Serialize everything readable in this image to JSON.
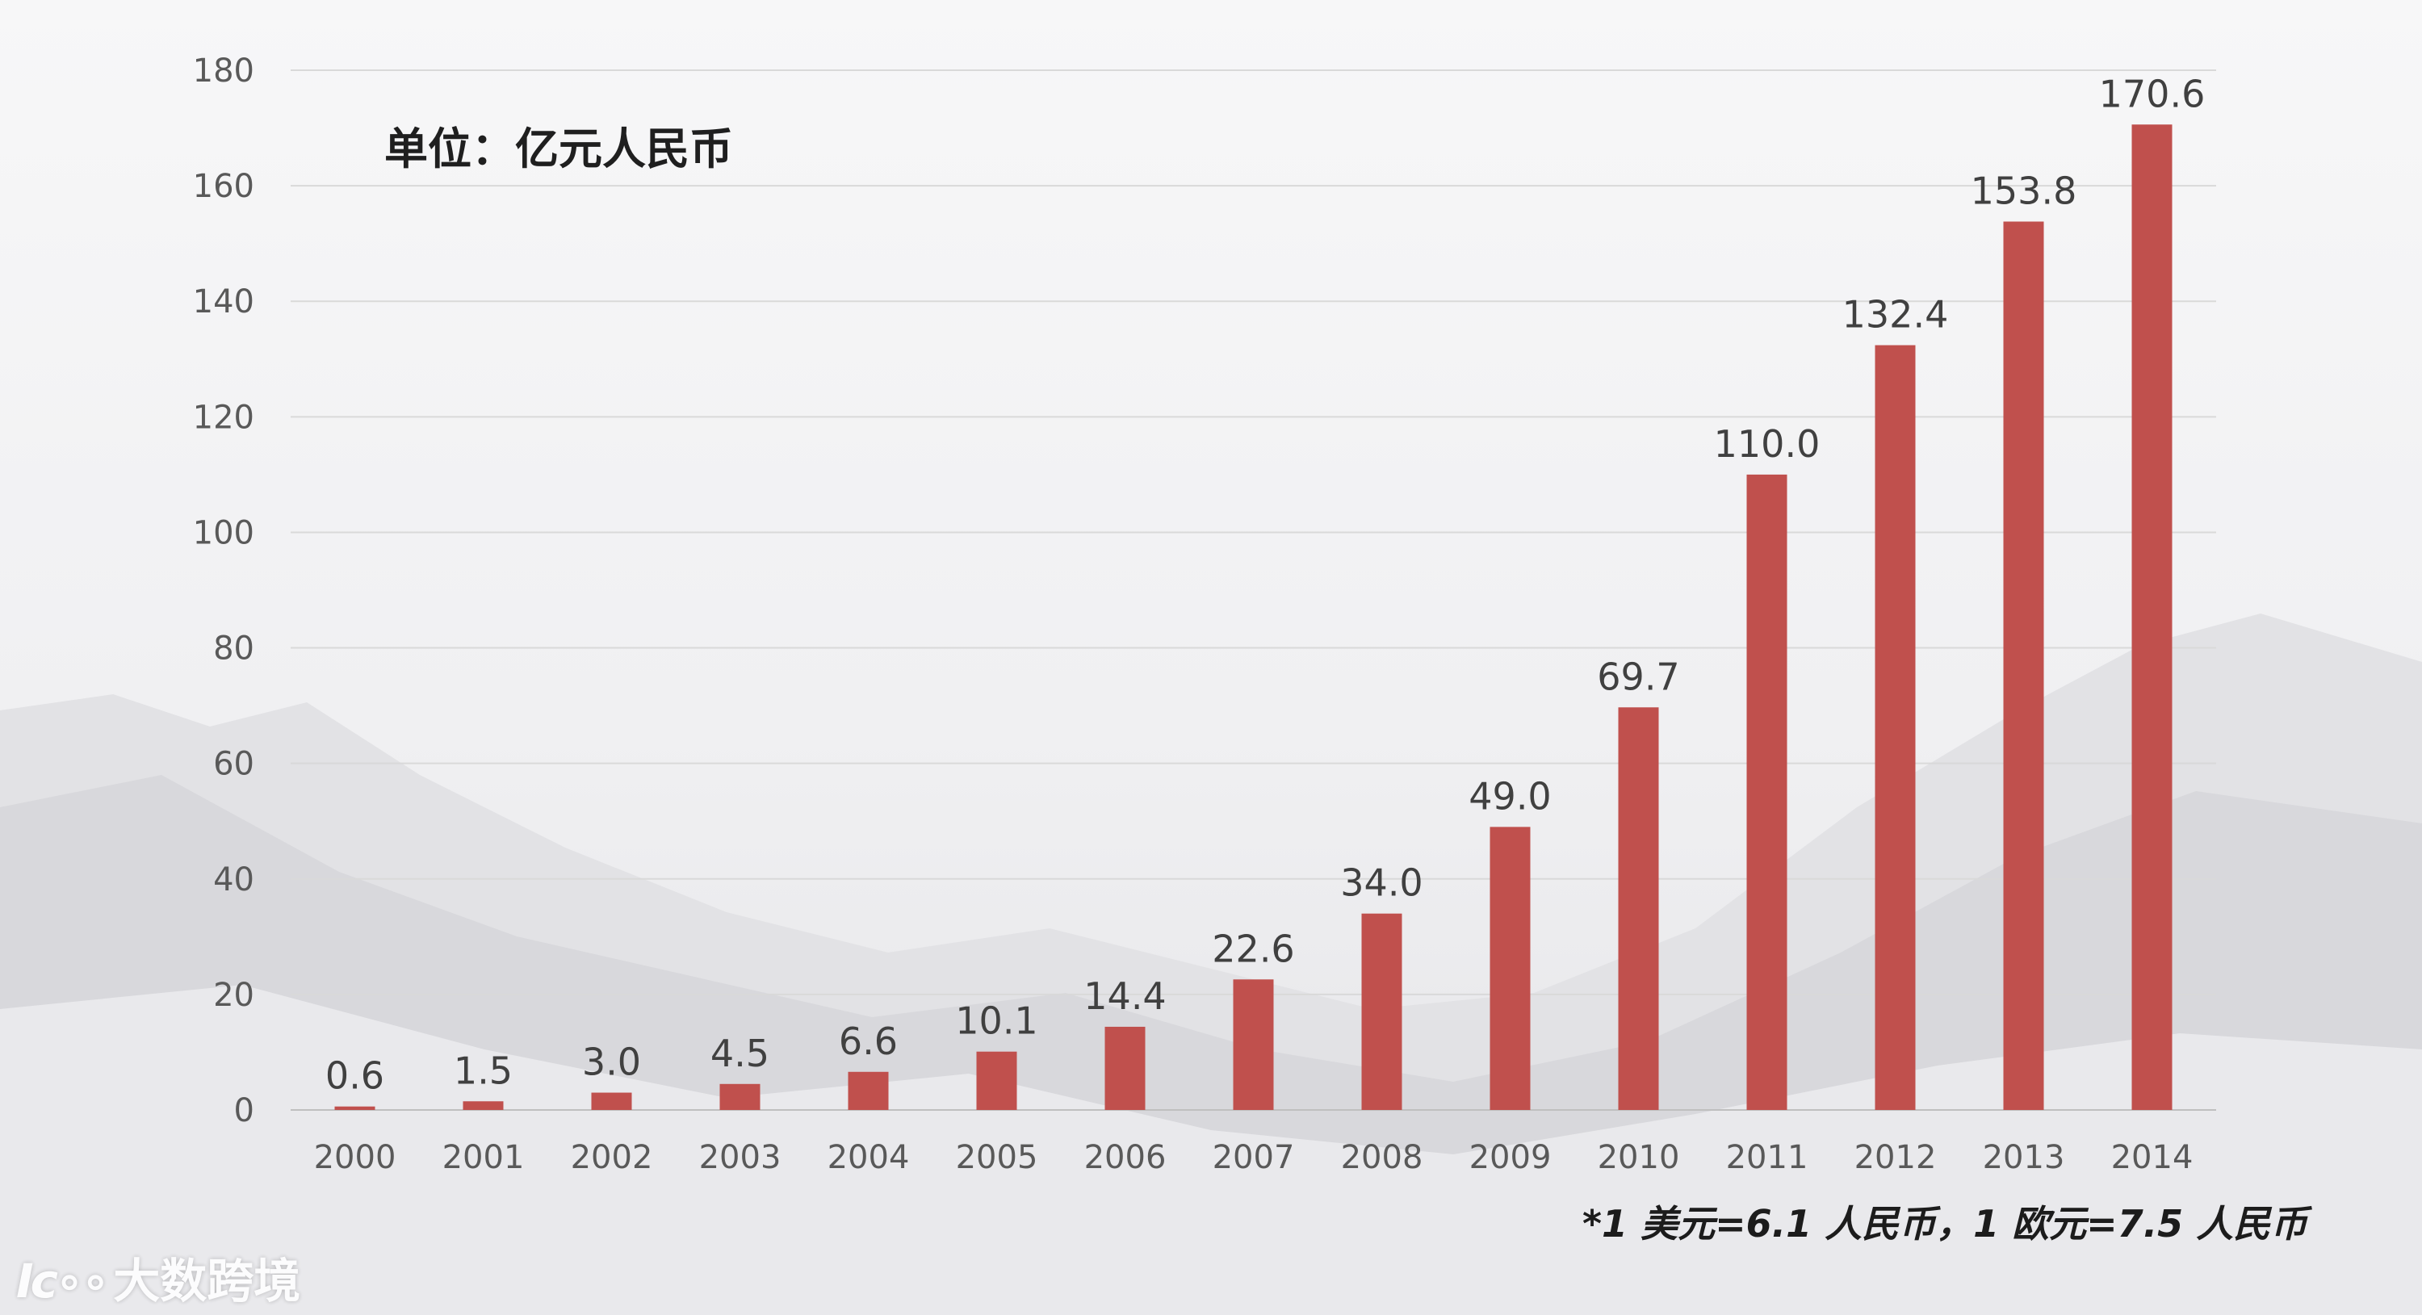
{
  "unit_label": "单位：亿元人民币",
  "note": "*1 美元=6.1 人民币，1 欧元=7.5 人民币",
  "watermark": {
    "mark": "Ic∘∘",
    "text": "大数跨境"
  },
  "colors": {
    "bar": "#c0504d",
    "grid": "#d9d9d9",
    "axis_text": "#595959",
    "label_text": "#404040"
  },
  "chart_data": {
    "type": "bar",
    "categories": [
      "2000",
      "2001",
      "2002",
      "2003",
      "2004",
      "2005",
      "2006",
      "2007",
      "2008",
      "2009",
      "2010",
      "2011",
      "2012",
      "2013",
      "2014"
    ],
    "values": [
      0.6,
      1.5,
      3.0,
      4.5,
      6.6,
      10.1,
      14.4,
      22.6,
      34.0,
      49.0,
      69.7,
      110.0,
      132.4,
      153.8,
      170.6
    ],
    "data_labels": [
      "0.6",
      "1.5",
      "3.0",
      "4.5",
      "6.6",
      "10.1",
      "14.4",
      "22.6",
      "34.0",
      "49.0",
      "69.7",
      "110.0",
      "132.4",
      "153.8",
      "170.6"
    ],
    "yticks": [
      "0",
      "20",
      "40",
      "60",
      "80",
      "100",
      "120",
      "140",
      "160",
      "180"
    ],
    "ylim": [
      0,
      180
    ],
    "title": "",
    "xlabel": "",
    "ylabel": "",
    "grid": true,
    "legend": "none"
  }
}
